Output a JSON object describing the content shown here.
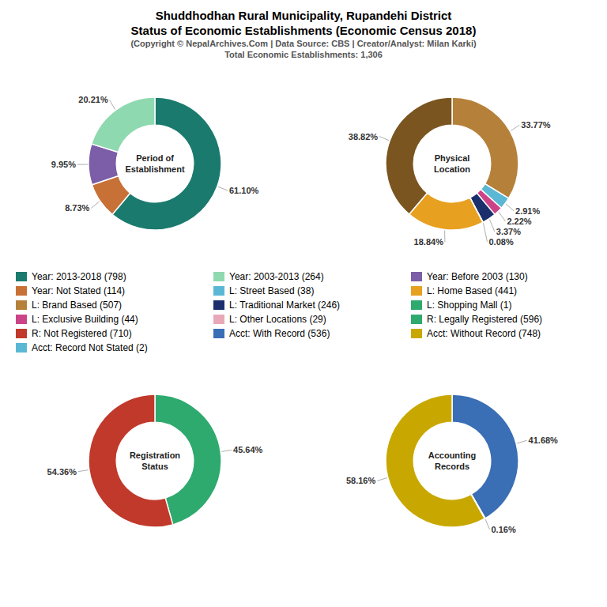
{
  "title": [
    "Shuddhodhan Rural Municipality, Rupandehi District",
    "Status of Economic Establishments (Economic Census 2018)"
  ],
  "subtitle": [
    "(Copyright © NepalArchives.Com | Data Source: CBS | Creator/Analyst: Milan Karki)",
    "Total Economic Establishments: 1,306"
  ],
  "legend_items": [
    {
      "name": "Year: 2013-2018 (798)",
      "color": "#1a7a6e"
    },
    {
      "name": "Year: 2003-2013 (264)",
      "color": "#8fd9b0"
    },
    {
      "name": "Year: Before 2003 (130)",
      "color": "#7b5ea7"
    },
    {
      "name": "Year: Not Stated (114)",
      "color": "#c87137"
    },
    {
      "name": "L: Street Based (38)",
      "color": "#5bb8d4"
    },
    {
      "name": "L: Home Based (441)",
      "color": "#e8a020"
    },
    {
      "name": "L: Brand Based (507)",
      "color": "#b5813a"
    },
    {
      "name": "L: Traditional Market (246)",
      "color": "#1a2f6b"
    },
    {
      "name": "L: Shopping Mall (1)",
      "color": "#2eaa6e"
    },
    {
      "name": "L: Exclusive Building (44)",
      "color": "#cc4488"
    },
    {
      "name": "L: Other Locations (29)",
      "color": "#e8a8b8"
    },
    {
      "name": "R: Legally Registered (596)",
      "color": "#2eaa6e"
    },
    {
      "name": "R: Not Registered (710)",
      "color": "#c0392b"
    },
    {
      "name": "Acct: With Record (536)",
      "color": "#3a6eb5"
    },
    {
      "name": "Acct: Without Record (748)",
      "color": "#c8a800"
    },
    {
      "name": "Acct: Record Not Stated (2)",
      "color": "#5bb8d4"
    }
  ],
  "chart_data": [
    {
      "type": "pie",
      "title": "Period of\nEstablishment",
      "values": [
        61.1,
        8.73,
        9.95,
        20.21
      ],
      "value_labels": [
        "61.10%",
        "8.73%",
        "9.95%",
        "20.21%"
      ],
      "colors": [
        "#1a7a6e",
        "#c87137",
        "#7b5ea7",
        "#8fd9b0"
      ],
      "data_labels": true
    },
    {
      "type": "pie",
      "title": "Physical\nLocation",
      "values": [
        33.77,
        2.91,
        2.22,
        3.37,
        0.08,
        18.84,
        38.82
      ],
      "value_labels": [
        "33.77%",
        "2.91%",
        "2.22%",
        "3.37%",
        "0.08%",
        "18.84%",
        "38.82%"
      ],
      "colors": [
        "#b5813a",
        "#5bb8d4",
        "#cc4488",
        "#1a2f6b",
        "#bbbbbb",
        "#e8a020",
        "#7a5520"
      ],
      "data_labels": true
    },
    {
      "type": "pie",
      "title": "Registration\nStatus",
      "values": [
        45.64,
        54.36
      ],
      "value_labels": [
        "45.64%",
        "54.36%"
      ],
      "colors": [
        "#2eaa6e",
        "#c0392b"
      ],
      "data_labels": true
    },
    {
      "type": "pie",
      "title": "Accounting\nRecords",
      "values": [
        41.68,
        0.16,
        58.16
      ],
      "value_labels": [
        "41.68%",
        "0.16%",
        "58.16%"
      ],
      "colors": [
        "#3a6eb5",
        "#e8c020",
        "#c8a800"
      ],
      "data_labels": true
    }
  ]
}
